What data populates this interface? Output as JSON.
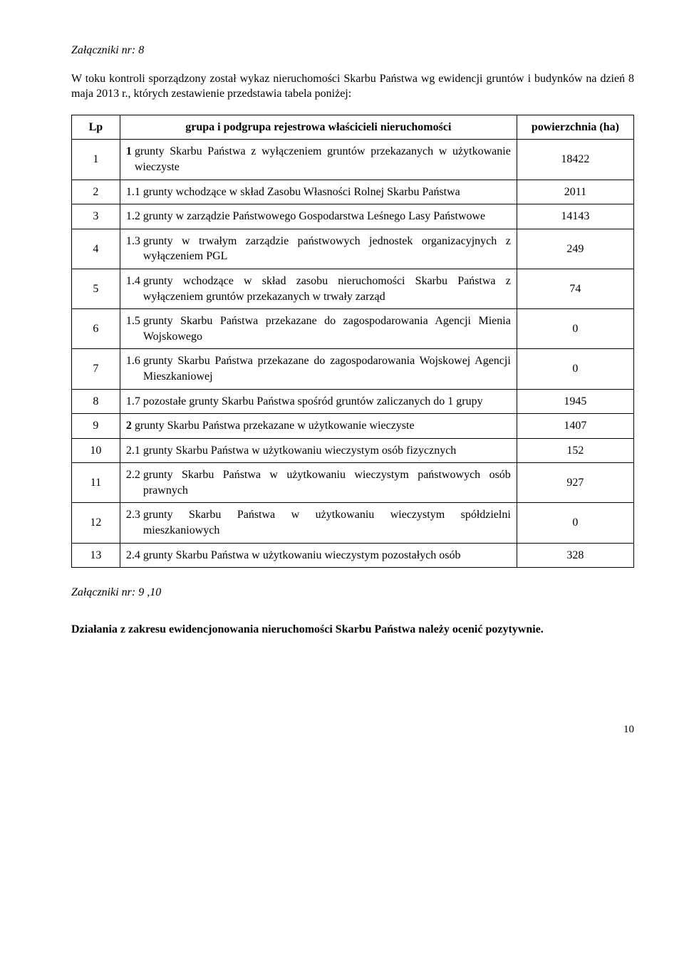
{
  "header_note": "Załączniki nr: 8",
  "intro": "W toku kontroli sporządzony został wykaz nieruchomości Skarbu Państwa wg ewidencji gruntów i budynków na dzień 8 maja 2013 r., których zestawienie przedstawia tabela poniżej:",
  "table": {
    "columns": {
      "lp": "Lp",
      "desc": "grupa i podgrupa rejestrowa właścicieli nieruchomości",
      "area": "powierzchnia (ha)"
    },
    "rows": [
      {
        "lp": "1",
        "num": "1",
        "num_bold": true,
        "text": "grunty Skarbu Państwa z wyłączeniem gruntów przekazanych w użytkowanie wieczyste",
        "area": "18422"
      },
      {
        "lp": "2",
        "num": "1.1",
        "num_bold": false,
        "text": "grunty wchodzące w skład Zasobu Własności Rolnej Skarbu Państwa",
        "area": "2011"
      },
      {
        "lp": "3",
        "num": "1.2",
        "num_bold": false,
        "text": "grunty w zarządzie Państwowego Gospodarstwa Leśnego Lasy Państwowe",
        "area": "14143"
      },
      {
        "lp": "4",
        "num": "1.3",
        "num_bold": false,
        "text": "grunty w trwałym zarządzie państwowych jednostek organizacyjnych z wyłączeniem PGL",
        "area": "249"
      },
      {
        "lp": "5",
        "num": "1.4",
        "num_bold": false,
        "text": "grunty wchodzące w skład zasobu nieruchomości Skarbu Państwa z wyłączeniem gruntów przekazanych w trwały zarząd",
        "area": "74"
      },
      {
        "lp": "6",
        "num": "1.5",
        "num_bold": false,
        "text": "grunty Skarbu Państwa przekazane do zagospodarowania Agencji Mienia Wojskowego",
        "area": "0"
      },
      {
        "lp": "7",
        "num": "1.6",
        "num_bold": false,
        "text": "grunty Skarbu Państwa przekazane do zagospodarowania Wojskowej Agencji Mieszkaniowej",
        "area": "0"
      },
      {
        "lp": "8",
        "num": "1.7",
        "num_bold": false,
        "text": "pozostałe grunty Skarbu Państwa spośród gruntów zaliczanych do 1 grupy",
        "area": "1945"
      },
      {
        "lp": "9",
        "num": "2",
        "num_bold": true,
        "text": "grunty Skarbu Państwa przekazane w użytkowanie wieczyste",
        "area": "1407"
      },
      {
        "lp": "10",
        "num": "2.1",
        "num_bold": false,
        "text": "grunty Skarbu Państwa w użytkowaniu wieczystym osób fizycznych",
        "area": "152"
      },
      {
        "lp": "11",
        "num": "2.2",
        "num_bold": false,
        "text": "grunty Skarbu Państwa w użytkowaniu wieczystym państwowych osób prawnych",
        "area": "927"
      },
      {
        "lp": "12",
        "num": "2.3",
        "num_bold": false,
        "text": "grunty Skarbu Państwa w użytkowaniu wieczystym spółdzielni mieszkaniowych",
        "area": "0"
      },
      {
        "lp": "13",
        "num": "2.4",
        "num_bold": false,
        "text": "grunty Skarbu Państwa w użytkowaniu wieczystym pozostałych osób",
        "area": "328"
      }
    ]
  },
  "footer_note": "Załączniki nr: 9 ,10",
  "conclusion": "Działania z zakresu ewidencjonowania nieruchomości Skarbu Państwa należy ocenić pozytywnie.",
  "page_number": "10",
  "style": {
    "font_family": "Times New Roman",
    "body_fontsize_pt": 12,
    "text_color": "#000000",
    "background_color": "#ffffff",
    "border_color": "#000000",
    "col_widths_pct": [
      7,
      73,
      20
    ]
  }
}
